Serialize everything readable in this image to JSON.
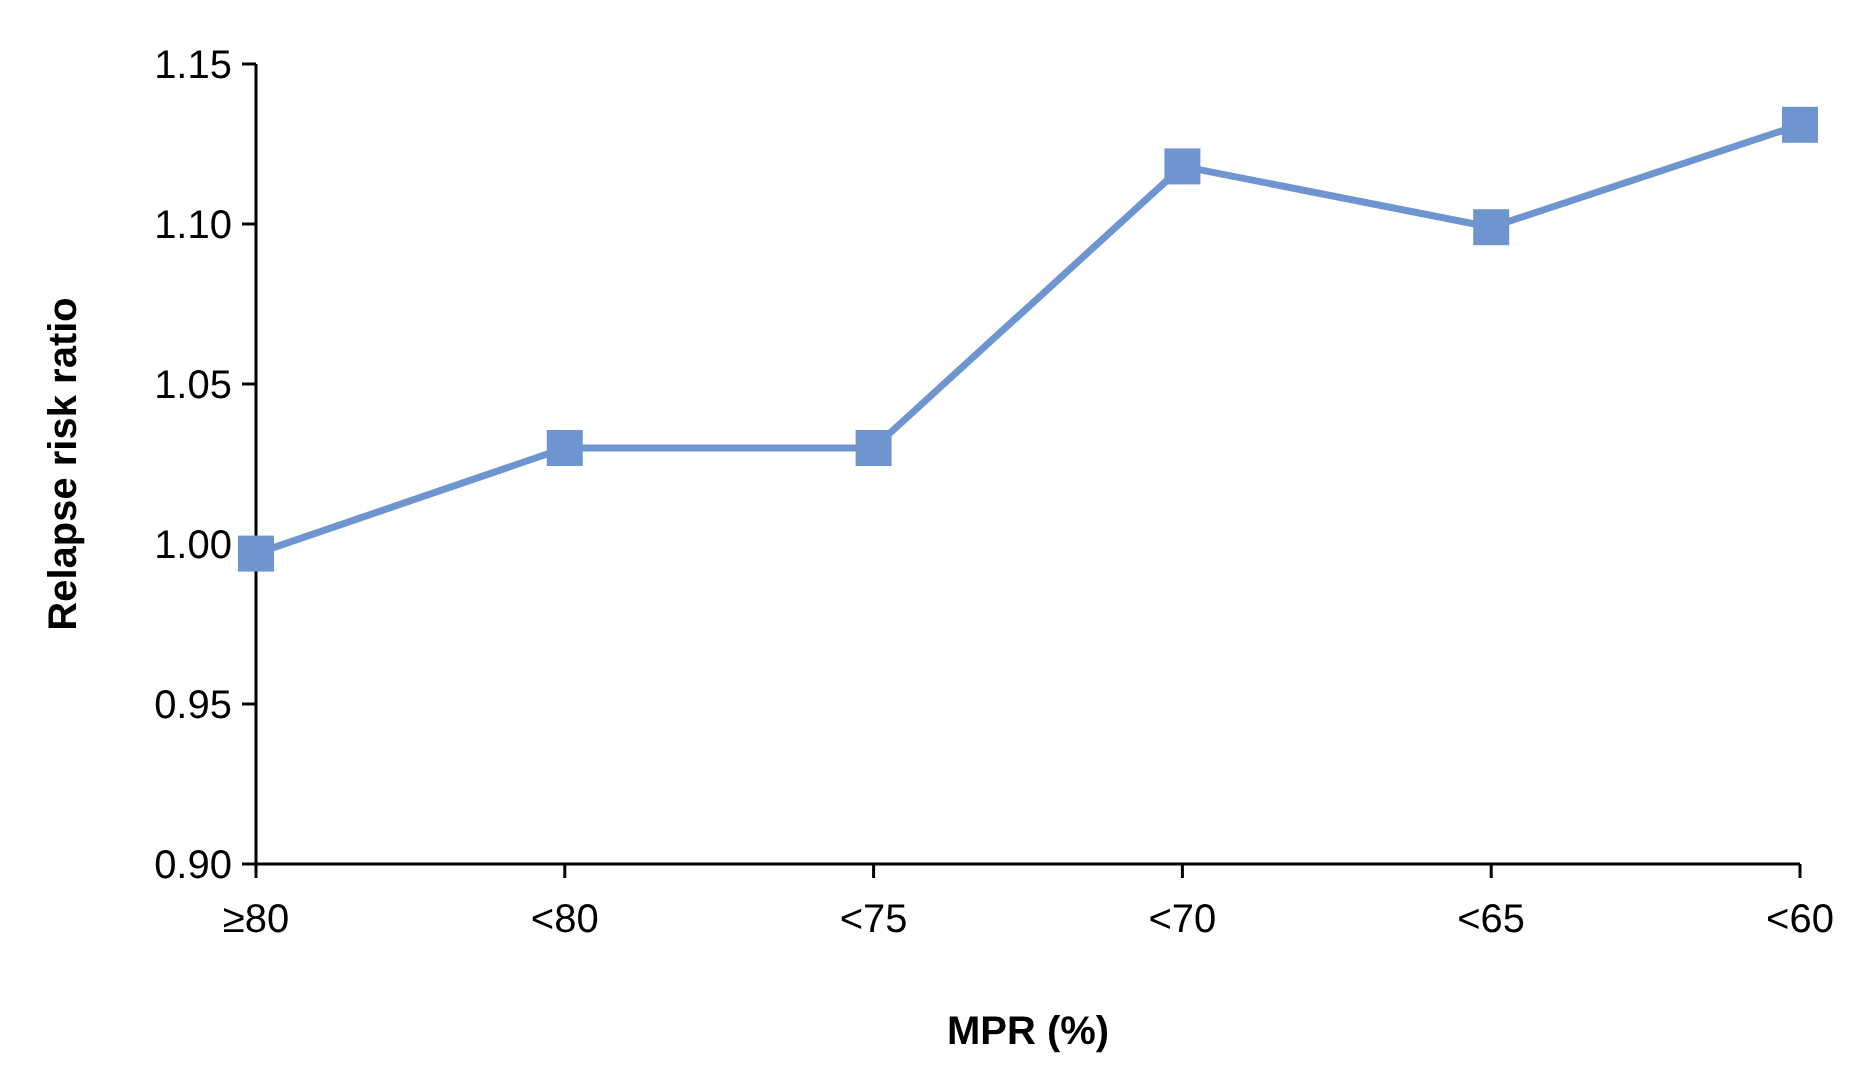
{
  "chart_data": {
    "type": "line",
    "xlabel": "MPR (%)",
    "ylabel": "Relapse risk ratio",
    "categories": [
      "≥80",
      "<80",
      "<75",
      "<70",
      "<65",
      "<60"
    ],
    "series": [
      {
        "color": "#6f95d1",
        "values": [
          0.997,
          1.03,
          1.03,
          1.118,
          1.099,
          1.131
        ]
      }
    ],
    "ylim": [
      0.9,
      1.15
    ],
    "yticks": [
      {
        "value": 0.9,
        "label": "0.90"
      },
      {
        "value": 0.95,
        "label": "0.95"
      },
      {
        "value": 1.0,
        "label": "1.00"
      },
      {
        "value": 1.05,
        "label": "1.05"
      },
      {
        "value": 1.1,
        "label": "1.10"
      },
      {
        "value": 1.15,
        "label": "1.15"
      }
    ],
    "grid": false,
    "marker": "square",
    "line_style": "solid"
  }
}
